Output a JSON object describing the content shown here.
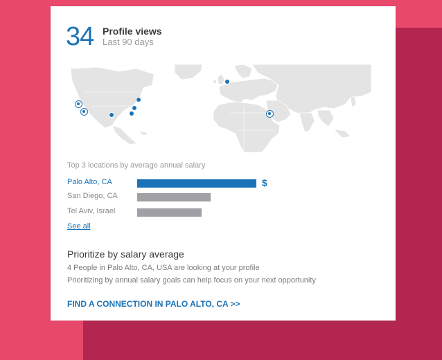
{
  "colors": {
    "background": "#e8486a",
    "shadow": "#b2264f",
    "accent": "#1a73b8",
    "bar_secondary": "#a0a0a5"
  },
  "header": {
    "count": "34",
    "title": "Profile views",
    "subtitle": "Last 90 days"
  },
  "map": {
    "icon": "world-map",
    "markers": [
      {
        "name": "marker-sf"
      },
      {
        "name": "marker-la"
      },
      {
        "name": "marker-texas"
      },
      {
        "name": "marker-chicago"
      },
      {
        "name": "marker-nyc"
      },
      {
        "name": "marker-dc"
      },
      {
        "name": "marker-uk"
      },
      {
        "name": "marker-israel"
      }
    ]
  },
  "salary": {
    "caption": "Top 3 locations by average annual salary",
    "rows": [
      {
        "label": "Palo Alto, CA",
        "value": 1.0,
        "highlight": true,
        "symbol": "$"
      },
      {
        "label": "San Diego, CA",
        "value": 0.61,
        "highlight": false,
        "symbol": ""
      },
      {
        "label": "Tel Aviv, Israel",
        "value": 0.54,
        "highlight": false,
        "symbol": ""
      }
    ],
    "see_all": "See all"
  },
  "prioritize": {
    "title": "Prioritize by salary average",
    "line1": "4 People in Palo Alto, CA, USA are looking at your profile",
    "line2": "Prioritizing by annual salary goals can help focus on your next opportunity",
    "cta": "FIND A CONNECTION IN PALO ALTO, CA >>"
  }
}
